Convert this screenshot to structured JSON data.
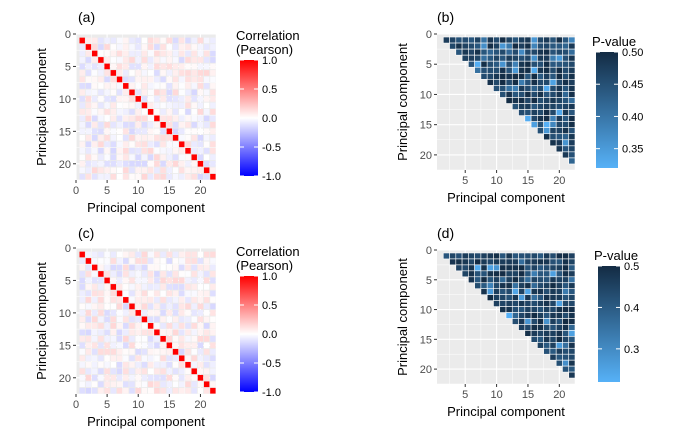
{
  "chart_data": [
    {
      "panel_label": "(a)",
      "type": "heatmap",
      "subtype": "correlation-matrix",
      "xlabel": "Principal component",
      "ylabel": "Principal component",
      "n": 22,
      "xlim": [
        0,
        22.5
      ],
      "ylim": [
        0,
        22.5
      ],
      "y_reversed": true,
      "x_ticks": [
        0,
        5,
        10,
        15,
        20
      ],
      "y_ticks": [
        0,
        5,
        10,
        15,
        20
      ],
      "diagonal_value": 1.0,
      "offdiagonal_magnitude": "near zero (about -0.15 to 0.15)",
      "seed": 11,
      "legend": {
        "title": [
          "Correlation",
          "(Pearson)"
        ],
        "ticks": [
          1.0,
          0.5,
          0.0,
          -0.5,
          -1.0
        ],
        "tick_labels": [
          "1.0",
          "0.5",
          "0.0",
          "-0.5",
          "-1.0"
        ],
        "range": [
          -1,
          1
        ],
        "colors": {
          "low": "#0000ff",
          "mid": "#ffffff",
          "high": "#ff0000"
        }
      }
    },
    {
      "panel_label": "(b)",
      "type": "heatmap",
      "subtype": "upper-triangle-p-values",
      "xlabel": "Principal component",
      "ylabel": "Principal component",
      "n": 22,
      "xlim": [
        0.5,
        22.5
      ],
      "ylim": [
        0,
        22.5
      ],
      "y_reversed": true,
      "x_ticks": [
        5,
        10,
        15,
        20
      ],
      "y_ticks": [
        0,
        5,
        10,
        15,
        20
      ],
      "value_range": [
        0.32,
        0.5
      ],
      "seed": 23,
      "legend": {
        "title": [
          "P-value"
        ],
        "ticks": [
          0.5,
          0.45,
          0.4,
          0.35
        ],
        "tick_labels": [
          "0.50",
          "0.45",
          "0.40",
          "0.35"
        ],
        "range": [
          0.32,
          0.5
        ],
        "colors": {
          "low": "#56b1f7",
          "high": "#132b43"
        }
      }
    },
    {
      "panel_label": "(c)",
      "type": "heatmap",
      "subtype": "correlation-matrix",
      "xlabel": "Principal component",
      "ylabel": "Principal component",
      "n": 22,
      "xlim": [
        0,
        22.5
      ],
      "ylim": [
        0,
        22.5
      ],
      "y_reversed": true,
      "x_ticks": [
        0,
        5,
        10,
        15,
        20
      ],
      "y_ticks": [
        0,
        5,
        10,
        15,
        20
      ],
      "diagonal_value": 1.0,
      "offdiagonal_magnitude": "near zero (about -0.15 to 0.15)",
      "seed": 37,
      "legend": {
        "title": [
          "Correlation",
          "(Pearson)"
        ],
        "ticks": [
          1.0,
          0.5,
          0.0,
          -0.5,
          -1.0
        ],
        "tick_labels": [
          "1.0",
          "0.5",
          "0.0",
          "-0.5",
          "-1.0"
        ],
        "range": [
          -1,
          1
        ],
        "colors": {
          "low": "#0000ff",
          "mid": "#ffffff",
          "high": "#ff0000"
        }
      }
    },
    {
      "panel_label": "(d)",
      "type": "heatmap",
      "subtype": "upper-triangle-p-values",
      "xlabel": "Principal component",
      "ylabel": "Principal component",
      "n": 22,
      "xlim": [
        0.5,
        22.5
      ],
      "ylim": [
        0,
        22.5
      ],
      "y_reversed": true,
      "x_ticks": [
        5,
        10,
        15,
        20
      ],
      "y_ticks": [
        0,
        5,
        10,
        15,
        20
      ],
      "value_range": [
        0.22,
        0.5
      ],
      "seed": 51,
      "legend": {
        "title": [
          "P-value"
        ],
        "ticks": [
          0.5,
          0.4,
          0.3
        ],
        "tick_labels": [
          "0.5",
          "0.4",
          "0.3"
        ],
        "range": [
          0.22,
          0.5
        ],
        "colors": {
          "low": "#56b1f7",
          "high": "#132b43"
        }
      }
    }
  ],
  "colors": {
    "panel_background": "#ebebeb",
    "grid": "#ffffff",
    "tick": "#4d4d4d"
  }
}
